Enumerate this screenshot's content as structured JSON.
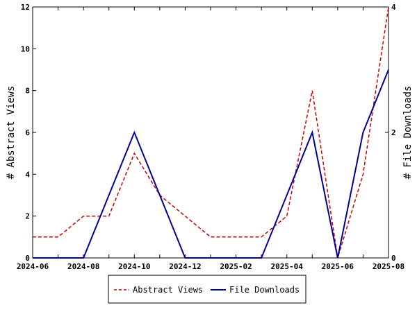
{
  "chart_data": {
    "type": "line",
    "x": [
      "2024-06",
      "2024-07",
      "2024-08",
      "2024-09",
      "2024-10",
      "2024-11",
      "2024-12",
      "2025-01",
      "2025-02",
      "2025-03",
      "2025-04",
      "2025-05",
      "2025-06",
      "2025-07",
      "2025-08"
    ],
    "x_tick_labels": [
      "2024-06",
      "2024-08",
      "2024-10",
      "2024-12",
      "2025-02",
      "2025-04",
      "2025-06",
      "2025-08"
    ],
    "ylabel": "# Abstract Views",
    "y2label": "# File Downloads",
    "ylim": [
      0,
      12
    ],
    "y2lim": [
      0,
      4
    ],
    "y_ticks": [
      "0",
      "2",
      "4",
      "6",
      "8",
      "10",
      "12"
    ],
    "y2_ticks": [
      "0",
      "2",
      "4"
    ],
    "grid": false,
    "legend_position": "bottom-center",
    "series": [
      {
        "name": "Abstract Views",
        "axis": "left",
        "color": "#cc0000",
        "style": "dashed",
        "values": [
          1,
          1,
          2,
          2,
          5,
          3,
          2,
          1,
          1,
          1,
          2,
          8,
          0,
          4,
          12
        ]
      },
      {
        "name": "File Downloads",
        "axis": "right",
        "color": "#000099",
        "style": "solid",
        "values": [
          0,
          0,
          0,
          1,
          2,
          1,
          0,
          0,
          0,
          0,
          1,
          2,
          0,
          2,
          3
        ]
      }
    ]
  }
}
